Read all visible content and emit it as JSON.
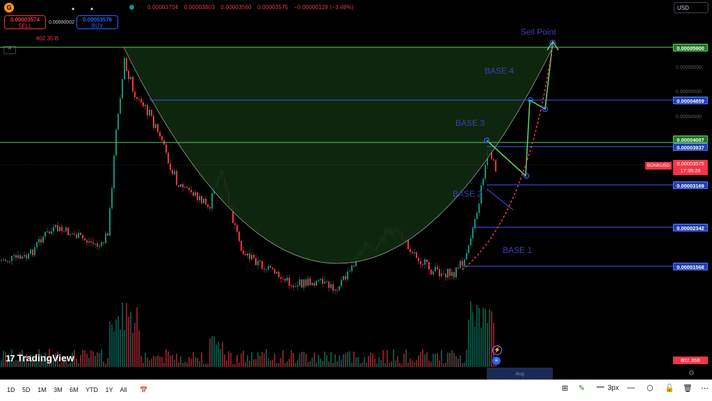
{
  "header": {
    "logo": "G",
    "dot1": "•",
    "dot2": "•",
    "ohlc": [
      "0.00003704",
      "0.00003803",
      "0.00003560",
      "0.00003575",
      "−0.00000129 (−3.48%)"
    ],
    "sell_price": "0.00003574",
    "sell_label": "SELL",
    "spread": "0.00000002",
    "buy_price": "0.00003576",
    "buy_label": "BUY",
    "volume": "802.35 B",
    "collapse": "^",
    "currency": "USD"
  },
  "price_axis": {
    "labels": [
      {
        "value": "0.00005900",
        "kind": "g"
      },
      {
        "value": "0.00004859",
        "kind": "b"
      },
      {
        "value": "0.00004007",
        "kind": "g"
      },
      {
        "value": "0.00003937",
        "kind": "b"
      },
      {
        "value": "0.00003169",
        "kind": "b"
      },
      {
        "value": "0.00002342",
        "kind": "b"
      },
      {
        "value": "0.00001568",
        "kind": "b"
      }
    ],
    "faint_ticks": [
      "0.00005500",
      "0.00005000",
      "0.00004500"
    ],
    "symbol": "BONKUSD",
    "current_price": "0.00003575",
    "countdown": "17:35:26",
    "volume_badge": "802.35B",
    "x_label": "Aug"
  },
  "annotations": {
    "sell_point": "Sell Point",
    "base4": "BASE 4",
    "base3": "BASE 3",
    "base2": "BASE 2",
    "base1": "BASE 1"
  },
  "branding": {
    "logo_mark": "17",
    "name": "TradingView"
  },
  "bottom_bar": {
    "ranges": [
      "1D",
      "5D",
      "1M",
      "3M",
      "6M",
      "YTD",
      "1Y",
      "All"
    ],
    "calendar_icon": "calendar-icon",
    "stroke_width": "3px"
  },
  "colors": {
    "up": "#089981",
    "down": "#f23645",
    "level_green": "#5fd35f",
    "level_blue": "#3a5bff",
    "cup_fill": "#0f2a0f"
  }
}
